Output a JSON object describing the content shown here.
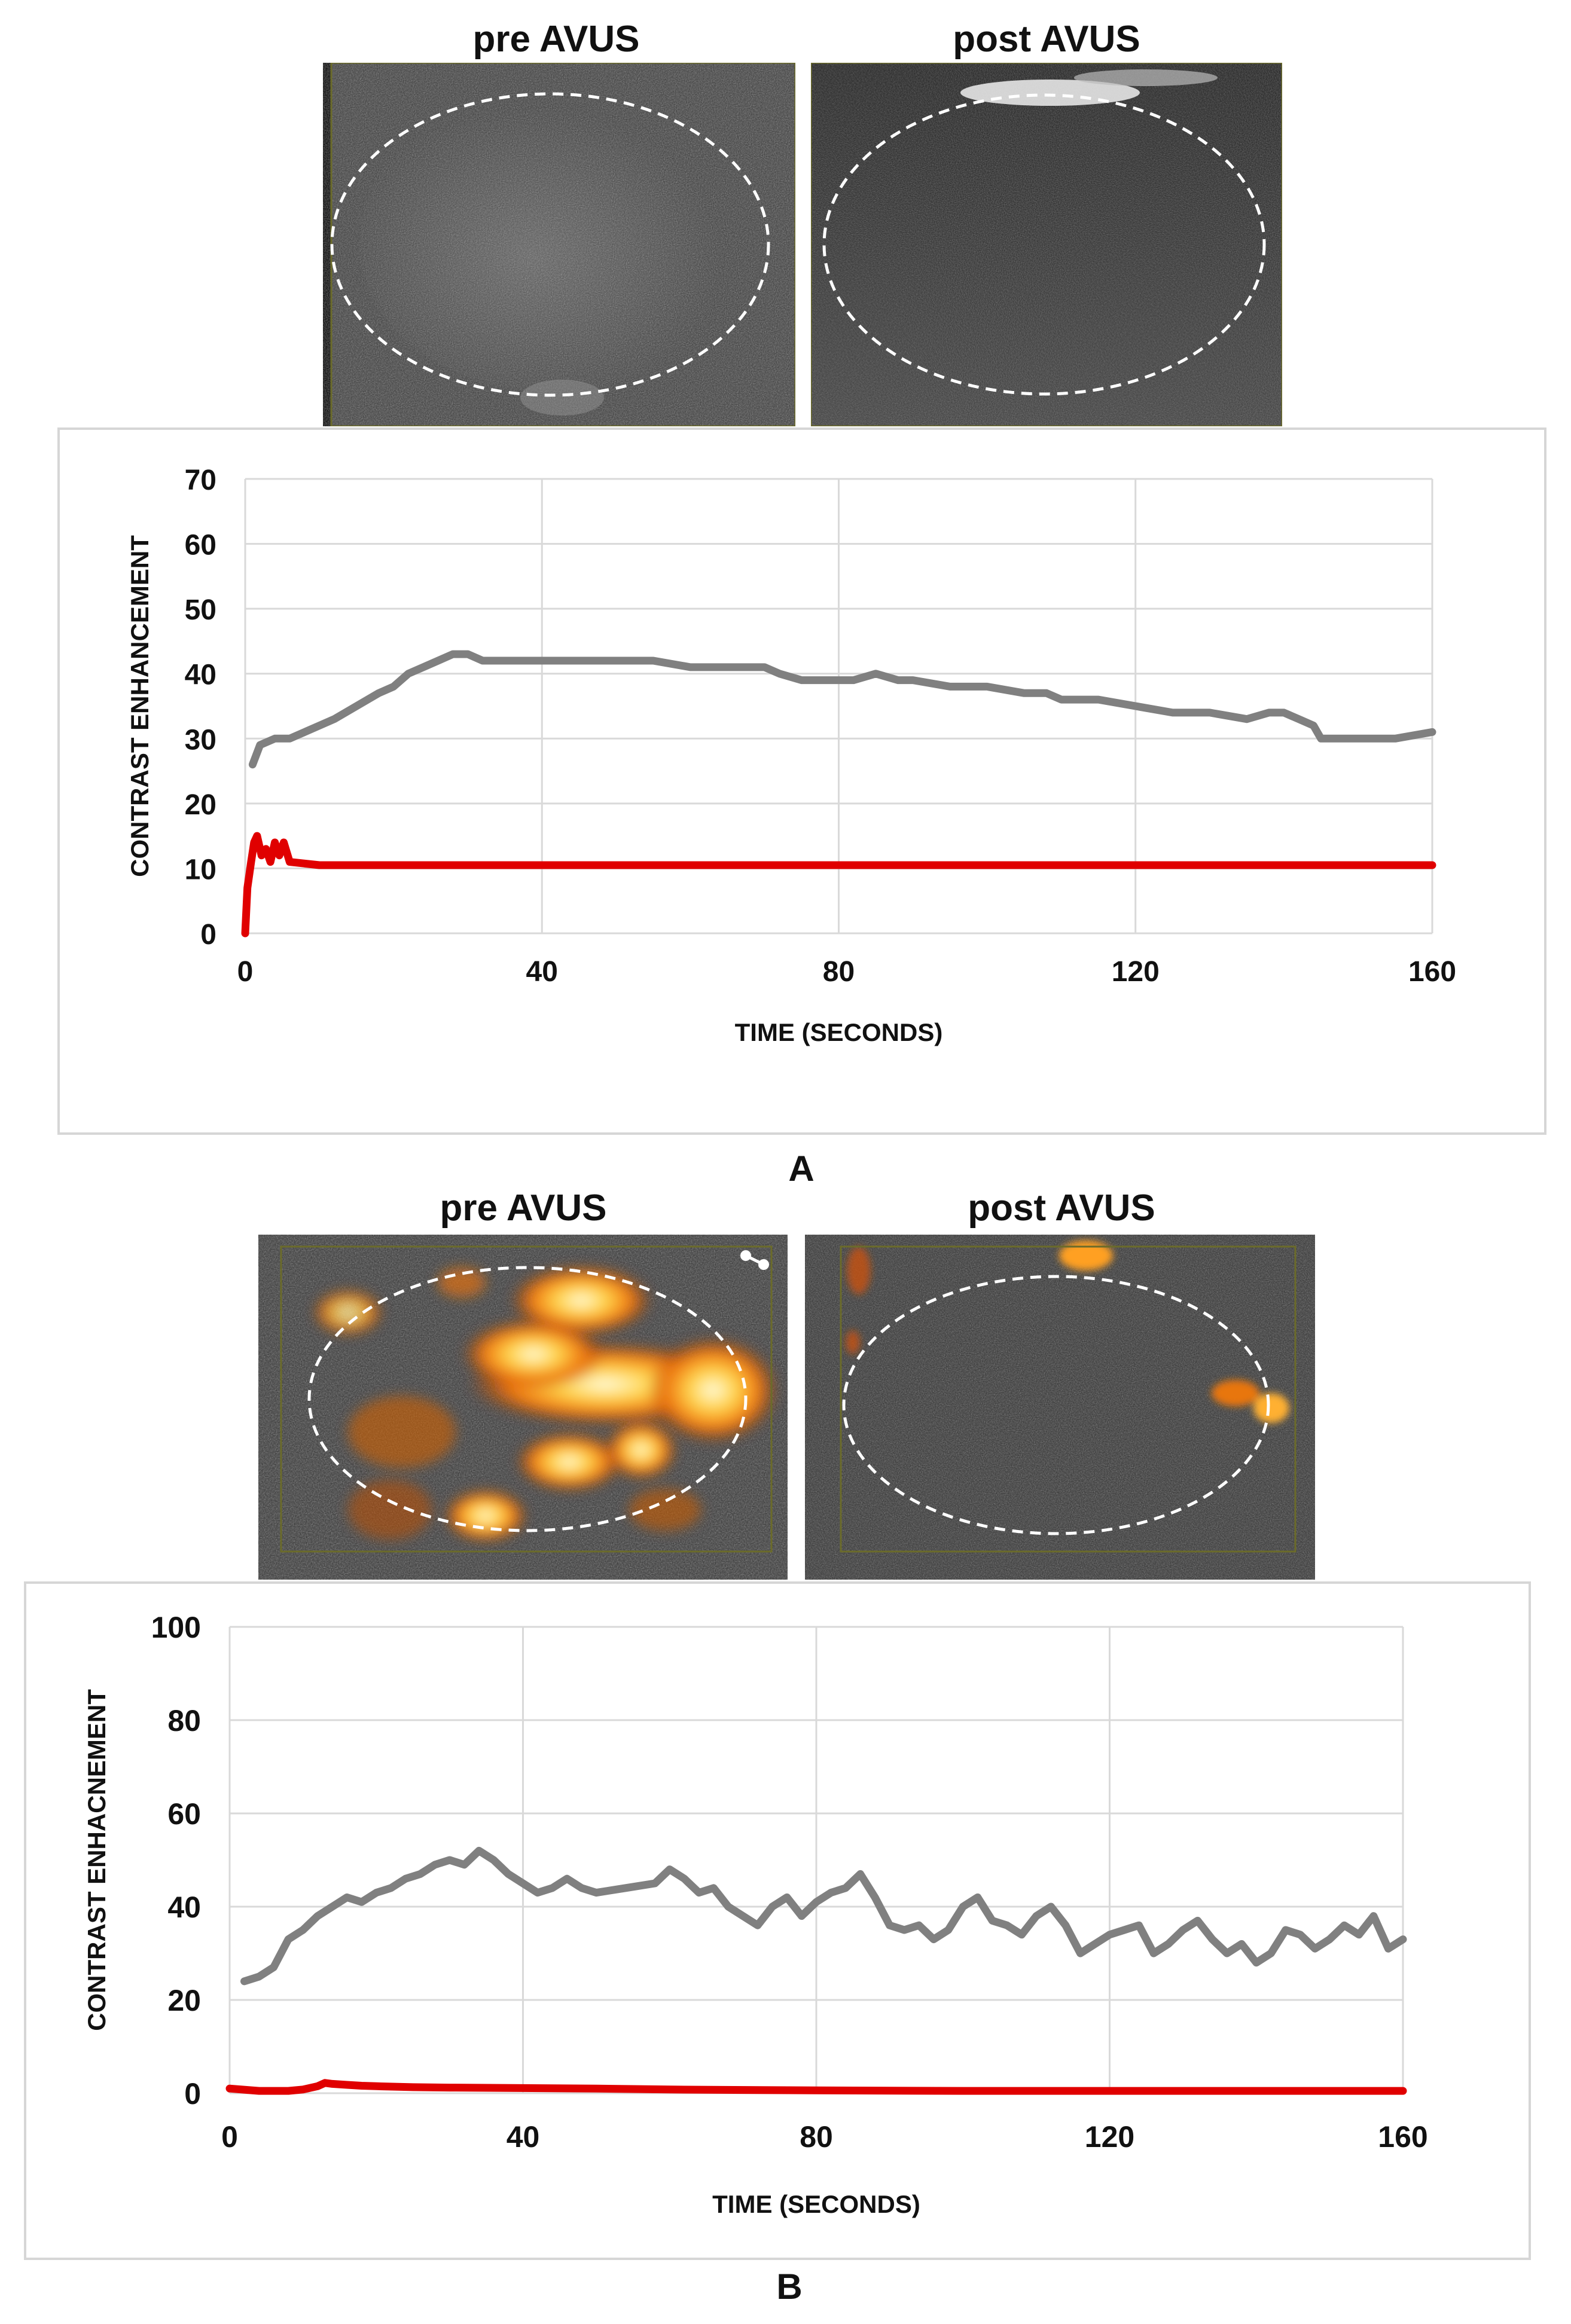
{
  "figure": {
    "panel_a_label": "A",
    "panel_b_label": "B",
    "panel_a_images": [
      {
        "title": "pre AVUS",
        "mode": "b-mode"
      },
      {
        "title": "post AVUS",
        "mode": "b-mode"
      }
    ],
    "panel_b_images": [
      {
        "title": "pre AVUS",
        "mode": "doppler"
      },
      {
        "title": "post AVUS",
        "mode": "doppler"
      }
    ]
  },
  "chart_data": [
    {
      "type": "line",
      "panel": "A",
      "title": "",
      "xlabel": "TIME (SECONDS)",
      "ylabel": "CONTRAST ENHANCEMENT",
      "xlim": [
        0,
        160
      ],
      "ylim": [
        0,
        70
      ],
      "xticks": [
        0,
        40,
        80,
        120,
        160
      ],
      "yticks": [
        0,
        10,
        20,
        30,
        40,
        50,
        60,
        70
      ],
      "grid": true,
      "series": [
        {
          "name": "pre AVUS",
          "color": "#808080",
          "x": [
            1,
            2,
            4,
            6,
            8,
            10,
            12,
            15,
            18,
            20,
            22,
            24,
            26,
            28,
            30,
            32,
            35,
            38,
            40,
            42,
            45,
            48,
            50,
            55,
            60,
            65,
            70,
            72,
            75,
            78,
            80,
            82,
            85,
            88,
            90,
            95,
            100,
            105,
            108,
            110,
            115,
            120,
            125,
            130,
            135,
            138,
            140,
            142,
            144,
            145,
            148,
            150,
            155,
            160
          ],
          "y": [
            26,
            29,
            30,
            30,
            31,
            32,
            33,
            35,
            37,
            38,
            40,
            41,
            42,
            43,
            43,
            42,
            42,
            42,
            42,
            42,
            42,
            42,
            42,
            42,
            41,
            41,
            41,
            40,
            39,
            39,
            39,
            39,
            40,
            39,
            39,
            38,
            38,
            37,
            37,
            36,
            36,
            35,
            34,
            34,
            33,
            34,
            34,
            33,
            32,
            30,
            30,
            30,
            30,
            31
          ]
        },
        {
          "name": "post AVUS",
          "color": "#e00000",
          "x": [
            0,
            0.3,
            0.8,
            1.2,
            1.6,
            2.2,
            2.8,
            3.4,
            4,
            4.6,
            5.2,
            6,
            10,
            20,
            40,
            60,
            80,
            100,
            120,
            140,
            160
          ],
          "y": [
            0,
            7,
            11,
            14,
            15,
            12,
            13,
            11,
            14,
            12,
            14,
            11,
            10.5,
            10.5,
            10.5,
            10.5,
            10.5,
            10.5,
            10.5,
            10.5,
            10.5
          ]
        }
      ]
    },
    {
      "type": "line",
      "panel": "B",
      "title": "",
      "xlabel": "TIME (SECONDS)",
      "ylabel": "CONTRAST ENHACNEMENT",
      "xlim": [
        0,
        160
      ],
      "ylim": [
        0,
        100
      ],
      "xticks": [
        0,
        40,
        80,
        120,
        160
      ],
      "yticks": [
        0,
        20,
        40,
        60,
        80,
        100
      ],
      "grid": true,
      "series": [
        {
          "name": "pre AVUS",
          "color": "#808080",
          "x": [
            2,
            4,
            6,
            8,
            10,
            12,
            14,
            16,
            18,
            20,
            22,
            24,
            26,
            28,
            30,
            32,
            34,
            36,
            38,
            40,
            42,
            44,
            46,
            48,
            50,
            54,
            58,
            60,
            62,
            64,
            66,
            68,
            70,
            72,
            74,
            76,
            78,
            80,
            82,
            84,
            86,
            88,
            90,
            92,
            94,
            96,
            98,
            100,
            102,
            104,
            106,
            108,
            110,
            112,
            114,
            116,
            118,
            120,
            122,
            124,
            126,
            128,
            130,
            132,
            134,
            136,
            138,
            140,
            142,
            144,
            146,
            148,
            150,
            152,
            154,
            156,
            158,
            160
          ],
          "y": [
            24,
            25,
            27,
            33,
            35,
            38,
            40,
            42,
            41,
            43,
            44,
            46,
            47,
            49,
            50,
            49,
            52,
            50,
            47,
            45,
            43,
            44,
            46,
            44,
            43,
            44,
            45,
            48,
            46,
            43,
            44,
            40,
            38,
            36,
            40,
            42,
            38,
            41,
            43,
            44,
            47,
            42,
            36,
            35,
            36,
            33,
            35,
            40,
            42,
            37,
            36,
            34,
            38,
            40,
            36,
            30,
            32,
            34,
            35,
            36,
            30,
            32,
            35,
            37,
            33,
            30,
            32,
            28,
            30,
            35,
            34,
            31,
            33,
            36,
            34,
            38,
            31,
            33
          ]
        },
        {
          "name": "post AVUS",
          "color": "#e00000",
          "x": [
            0,
            4,
            8,
            10,
            12,
            13,
            14,
            16,
            18,
            20,
            25,
            30,
            40,
            50,
            60,
            80,
            100,
            120,
            140,
            160
          ],
          "y": [
            1,
            0.5,
            0.5,
            0.8,
            1.5,
            2.2,
            2,
            1.8,
            1.6,
            1.5,
            1.3,
            1.2,
            1.1,
            1,
            0.8,
            0.6,
            0.5,
            0.5,
            0.5,
            0.5
          ]
        }
      ]
    }
  ]
}
